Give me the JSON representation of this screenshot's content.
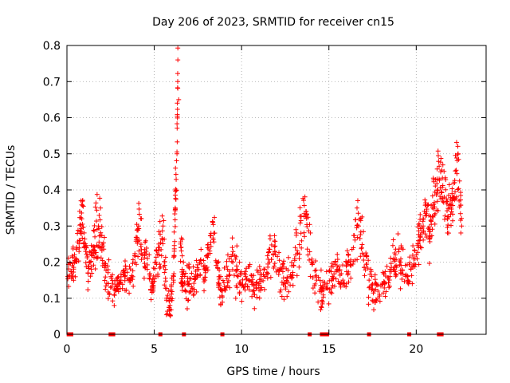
{
  "chart_data": {
    "type": "scatter",
    "title": "Day 206 of 2023, SRMTID for receiver cn15",
    "xlabel": "GPS time / hours",
    "ylabel": "SRMTID / TECUs",
    "xlim": [
      0,
      24
    ],
    "ylim": [
      0,
      0.8
    ],
    "x_ticks": [
      0,
      5,
      10,
      15,
      20
    ],
    "x_tick_labels": [
      "0",
      "5",
      "10",
      "15",
      "20"
    ],
    "y_ticks": [
      0,
      0.1,
      0.2,
      0.3,
      0.4,
      0.5,
      0.6,
      0.7,
      0.8
    ],
    "y_tick_labels": [
      "0",
      "0.1",
      "0.2",
      "0.3",
      "0.4",
      "0.5",
      "0.6",
      "0.7",
      "0.8"
    ],
    "grid": true,
    "marker": "+",
    "color": "#ff0000",
    "series": [
      {
        "name": "SRMTID",
        "x": [
          0.05,
          0.3,
          0.5,
          0.7,
          0.85,
          1.0,
          1.2,
          1.4,
          1.6,
          1.8,
          2.0,
          2.2,
          2.5,
          2.8,
          3.0,
          3.3,
          3.6,
          3.9,
          4.1,
          4.3,
          4.6,
          4.9,
          5.1,
          5.3,
          5.5,
          5.7,
          5.9,
          6.1,
          6.2,
          6.3,
          6.35,
          6.4,
          6.5,
          6.6,
          6.8,
          7.0,
          7.3,
          7.6,
          7.9,
          8.1,
          8.4,
          8.7,
          8.9,
          9.2,
          9.5,
          9.8,
          10.1,
          10.4,
          10.7,
          11.0,
          11.3,
          11.6,
          11.9,
          12.2,
          12.5,
          12.8,
          13.1,
          13.4,
          13.7,
          14.0,
          14.3,
          14.6,
          14.9,
          15.2,
          15.5,
          15.8,
          16.1,
          16.4,
          16.7,
          17.0,
          17.3,
          17.6,
          17.9,
          18.2,
          18.5,
          18.8,
          19.1,
          19.4,
          19.7,
          20.0,
          20.2,
          20.4,
          20.6,
          20.8,
          21.0,
          21.2,
          21.4,
          21.6,
          21.8,
          22.0,
          22.2,
          22.4,
          22.6
        ],
        "y": [
          0.16,
          0.19,
          0.21,
          0.26,
          0.32,
          0.24,
          0.17,
          0.22,
          0.27,
          0.3,
          0.24,
          0.19,
          0.13,
          0.12,
          0.14,
          0.16,
          0.15,
          0.2,
          0.3,
          0.22,
          0.18,
          0.14,
          0.2,
          0.24,
          0.3,
          0.1,
          0.08,
          0.15,
          0.35,
          0.5,
          0.76,
          0.65,
          0.25,
          0.18,
          0.12,
          0.14,
          0.16,
          0.2,
          0.15,
          0.22,
          0.28,
          0.14,
          0.12,
          0.18,
          0.2,
          0.16,
          0.13,
          0.15,
          0.12,
          0.14,
          0.16,
          0.2,
          0.23,
          0.18,
          0.14,
          0.16,
          0.22,
          0.28,
          0.34,
          0.2,
          0.15,
          0.12,
          0.14,
          0.16,
          0.18,
          0.15,
          0.2,
          0.24,
          0.3,
          0.22,
          0.15,
          0.12,
          0.11,
          0.14,
          0.18,
          0.22,
          0.2,
          0.16,
          0.18,
          0.22,
          0.26,
          0.3,
          0.33,
          0.27,
          0.36,
          0.4,
          0.45,
          0.38,
          0.32,
          0.36,
          0.42,
          0.5,
          0.3
        ],
        "spread": [
          0.04,
          0.05,
          0.05,
          0.07,
          0.08,
          0.06,
          0.05,
          0.07,
          0.08,
          0.09,
          0.06,
          0.05,
          0.04,
          0.03,
          0.04,
          0.05,
          0.05,
          0.07,
          0.08,
          0.06,
          0.06,
          0.05,
          0.06,
          0.07,
          0.08,
          0.05,
          0.04,
          0.06,
          0.08,
          0.08,
          0.0,
          0.0,
          0.08,
          0.06,
          0.05,
          0.05,
          0.05,
          0.06,
          0.05,
          0.06,
          0.07,
          0.05,
          0.04,
          0.06,
          0.07,
          0.06,
          0.05,
          0.05,
          0.04,
          0.05,
          0.05,
          0.06,
          0.07,
          0.06,
          0.05,
          0.06,
          0.07,
          0.07,
          0.08,
          0.06,
          0.05,
          0.04,
          0.05,
          0.05,
          0.05,
          0.05,
          0.06,
          0.07,
          0.08,
          0.06,
          0.05,
          0.04,
          0.04,
          0.05,
          0.06,
          0.07,
          0.06,
          0.05,
          0.05,
          0.06,
          0.07,
          0.08,
          0.08,
          0.07,
          0.08,
          0.08,
          0.07,
          0.08,
          0.07,
          0.07,
          0.08,
          0.07,
          0.06
        ]
      }
    ],
    "zero_markers_x": [
      0.1,
      0.25,
      2.5,
      2.65,
      5.35,
      6.7,
      8.9,
      13.9,
      14.6,
      14.75,
      14.9,
      17.3,
      19.6,
      21.3,
      21.45
    ]
  }
}
